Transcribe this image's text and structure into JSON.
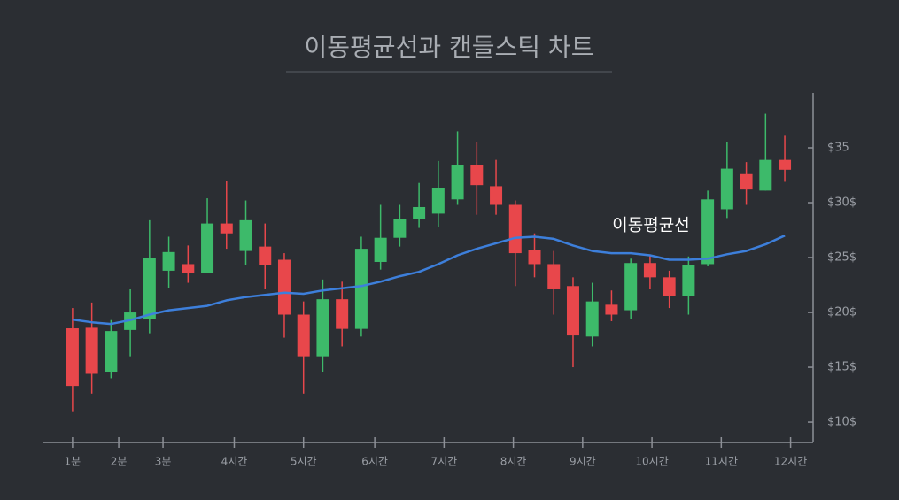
{
  "chart_data": {
    "type": "candlestick",
    "title": "이동평균선과 캔들스틱 차트",
    "x": [
      0,
      1,
      2,
      3,
      4,
      5,
      6,
      7,
      8,
      9,
      10,
      11,
      12,
      13,
      14,
      15,
      16,
      17,
      18,
      19,
      20,
      21,
      22,
      23,
      24,
      25,
      26,
      27,
      28,
      29,
      30,
      31,
      32,
      33,
      34,
      35,
      36,
      37
    ],
    "open": [
      18.55,
      18.6,
      14.6,
      18.4,
      19.4,
      23.8,
      24.4,
      23.6,
      28.1,
      25.6,
      26.0,
      24.8,
      19.8,
      16.0,
      21.2,
      18.5,
      24.6,
      26.8,
      28.5,
      29.0,
      30.3,
      33.4,
      31.5,
      29.8,
      25.7,
      24.4,
      22.4,
      17.8,
      20.7,
      20.2,
      24.5,
      23.2,
      21.5,
      24.4,
      29.4,
      32.6,
      31.1,
      33.9
    ],
    "high": [
      20.4,
      20.9,
      19.3,
      22.1,
      28.4,
      26.9,
      26.1,
      30.4,
      32.0,
      30.2,
      28.1,
      25.4,
      21.0,
      23.0,
      22.8,
      26.9,
      29.8,
      29.8,
      31.8,
      33.8,
      36.5,
      35.5,
      33.9,
      30.2,
      27.2,
      25.6,
      23.2,
      22.7,
      22.0,
      24.9,
      25.2,
      23.8,
      25.1,
      31.1,
      35.5,
      33.7,
      38.1,
      36.1
    ],
    "low": [
      11.0,
      12.6,
      14.0,
      16.0,
      18.1,
      22.2,
      22.7,
      23.6,
      25.8,
      24.3,
      22.1,
      17.7,
      12.6,
      14.6,
      16.9,
      17.8,
      23.9,
      26.0,
      27.7,
      27.8,
      29.8,
      28.9,
      28.9,
      22.4,
      23.2,
      19.8,
      15.0,
      16.9,
      19.2,
      19.4,
      22.1,
      20.4,
      19.8,
      24.2,
      28.6,
      29.8,
      31.1,
      31.9
    ],
    "close": [
      13.3,
      14.4,
      18.3,
      20.0,
      25.0,
      25.5,
      23.6,
      28.1,
      27.2,
      28.4,
      24.3,
      19.8,
      16.0,
      21.2,
      18.5,
      25.8,
      26.8,
      28.5,
      29.6,
      31.3,
      33.4,
      31.6,
      29.8,
      25.4,
      24.4,
      22.1,
      17.9,
      21.0,
      19.8,
      24.5,
      23.2,
      21.5,
      24.3,
      30.3,
      33.1,
      31.2,
      33.9,
      33.0
    ],
    "up_color": "#3dba6a",
    "down_color": "#e8474b",
    "moving_average": {
      "name": "이동평균선",
      "color": "#3d7fdb",
      "values": [
        19.35,
        19.1,
        18.95,
        19.3,
        19.8,
        20.2,
        20.4,
        20.6,
        21.1,
        21.4,
        21.6,
        21.8,
        21.7,
        22.0,
        22.2,
        22.4,
        22.8,
        23.3,
        23.7,
        24.4,
        25.2,
        25.8,
        26.3,
        26.8,
        26.9,
        26.7,
        26.1,
        25.6,
        25.4,
        25.4,
        25.2,
        24.8,
        24.8,
        24.9,
        25.3,
        25.6,
        26.2,
        27.0
      ]
    },
    "xlim": [
      -1.56,
      38.47
    ],
    "xticks": [
      {
        "value": 0,
        "label": "1분"
      },
      {
        "value": 2.4,
        "label": "2분"
      },
      {
        "value": 4.7,
        "label": "3분"
      },
      {
        "value": 8.4,
        "label": "4시간"
      },
      {
        "value": 12,
        "label": "5시간"
      },
      {
        "value": 15.7,
        "label": "6시간"
      },
      {
        "value": 19.3,
        "label": "7시간"
      },
      {
        "value": 22.9,
        "label": "8시간"
      },
      {
        "value": 26.5,
        "label": "9시간"
      },
      {
        "value": 30.1,
        "label": "10시간"
      },
      {
        "value": 33.7,
        "label": "11시간"
      },
      {
        "value": 37.3,
        "label": "12시간"
      }
    ],
    "ylim": [
      8.15,
      40
    ],
    "yticks": [
      {
        "value": 10,
        "label": "$10$"
      },
      {
        "value": 15,
        "label": "$15$"
      },
      {
        "value": 20,
        "label": "$20$"
      },
      {
        "value": 25,
        "label": "$25$"
      },
      {
        "value": 30,
        "label": "$30$"
      },
      {
        "value": 35,
        "label": "$35"
      }
    ]
  }
}
